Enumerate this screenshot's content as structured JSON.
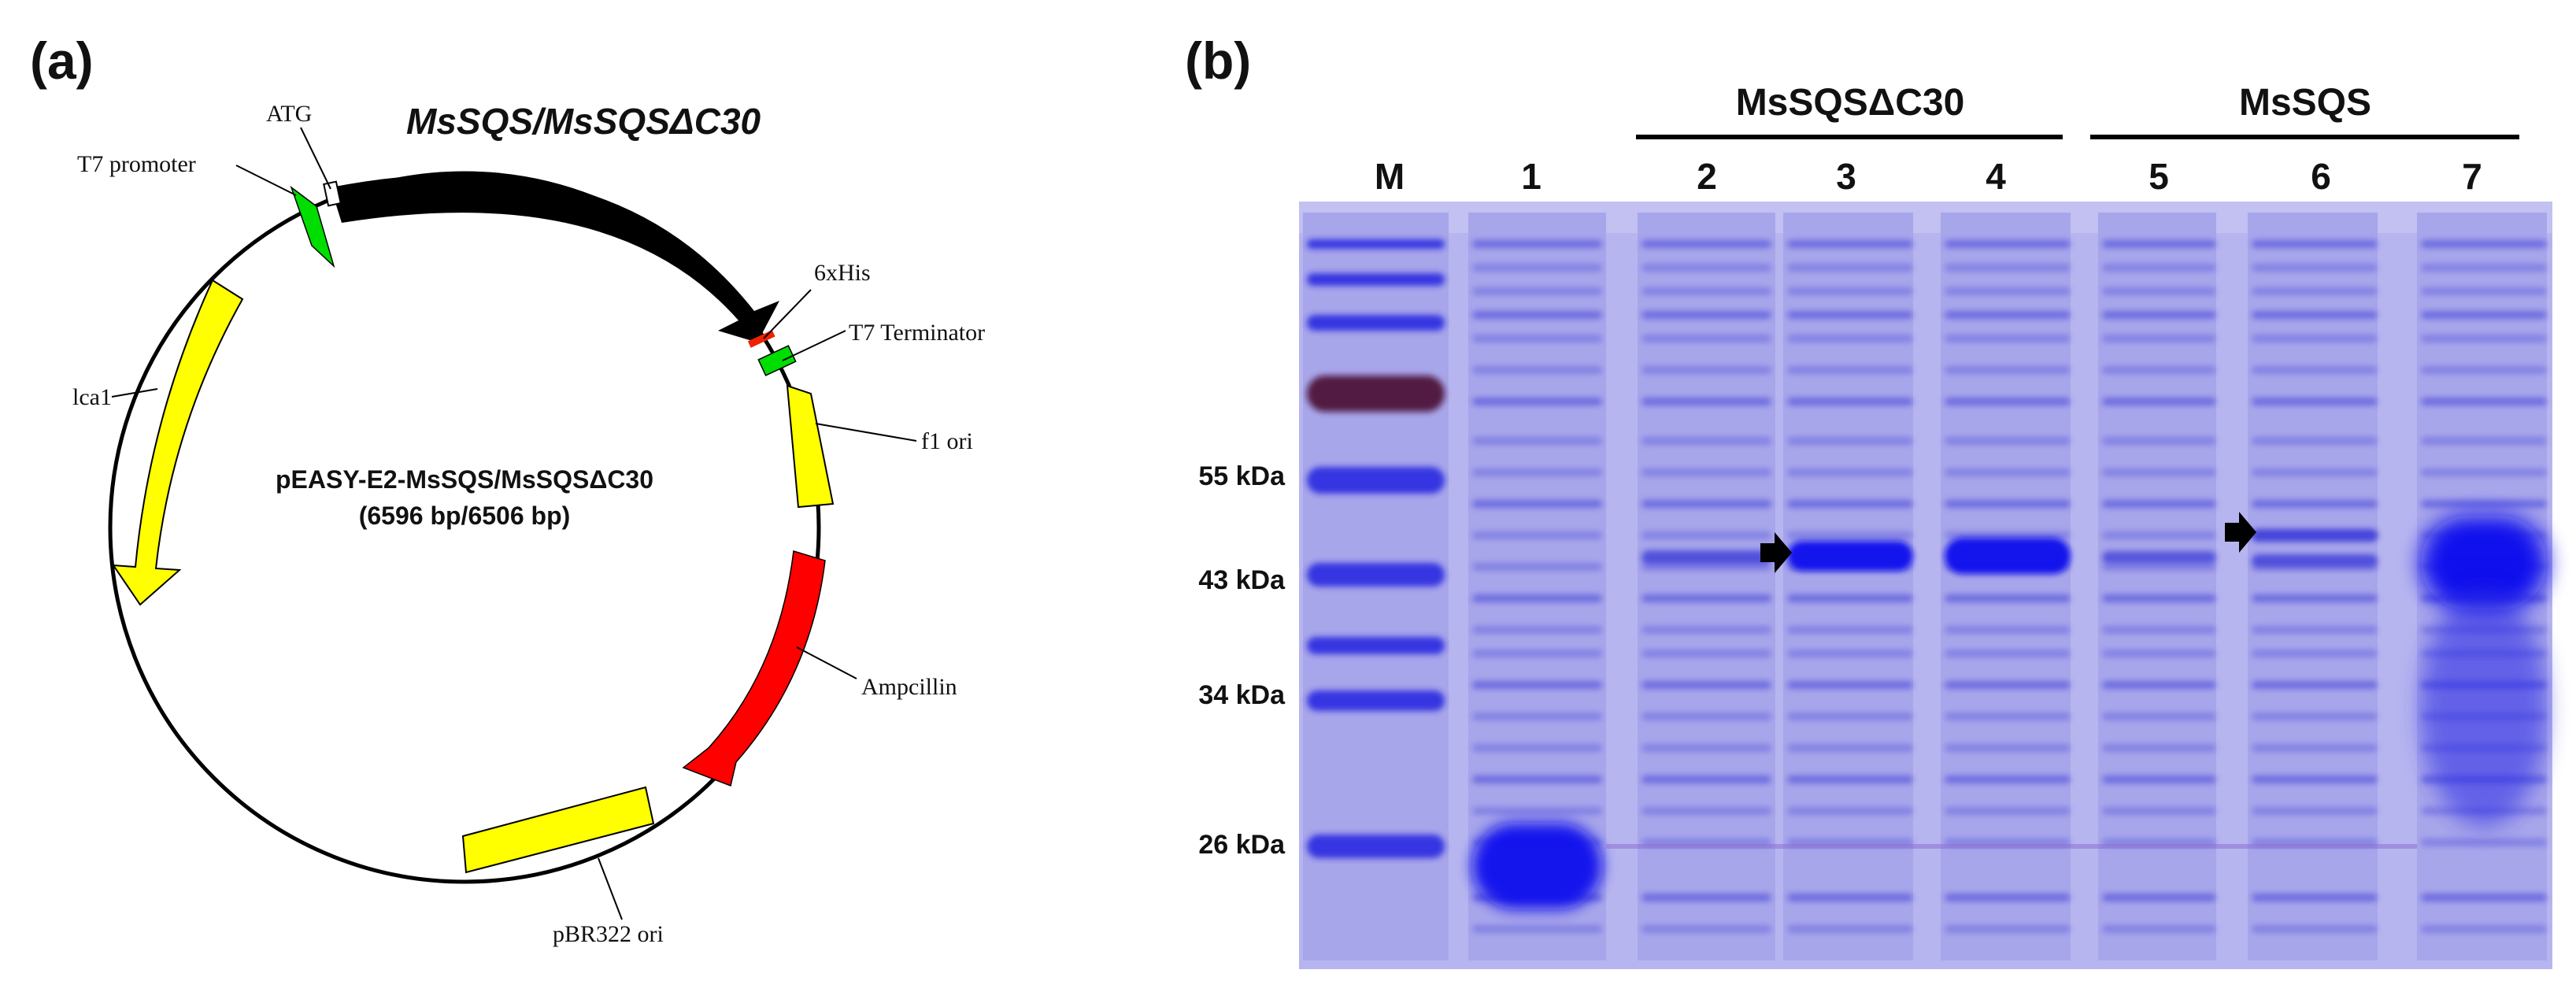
{
  "panel_a": {
    "letter": "(a)",
    "title": "MsSQS/MsSQSΔC30",
    "center_line1": "pEASY-E2-MsSQS/MsSQSΔC30",
    "center_line2": "(6596 bp/6506 bp)",
    "features": {
      "atg": "ATG",
      "t7_promoter": "T7 promoter",
      "his": "6xHis",
      "t7_terminator": "T7 Terminator",
      "f1_ori": "f1 ori",
      "ampicillin": "Ampcillin",
      "pbr322": "pBR322 ori",
      "lca1": "lca1"
    },
    "colors": {
      "gene": "#000000",
      "marker_feature": "#ffff00",
      "resistance": "#ff0000",
      "promoter": "#00dd00",
      "his_tag": "#ff2200"
    }
  },
  "panel_b": {
    "letter": "(b)",
    "group1_label": "MsSQSΔC30",
    "group2_label": "MsSQS",
    "lanes": [
      "M",
      "1",
      "2",
      "3",
      "4",
      "5",
      "6",
      "7"
    ],
    "mw_labels": [
      "55 kDa",
      "43 kDa",
      "34 kDa",
      "26 kDa"
    ],
    "colors": {
      "gel_background": "#b9b9f2",
      "band": "#3a3ad8",
      "strong_band": "#1010ee"
    }
  }
}
